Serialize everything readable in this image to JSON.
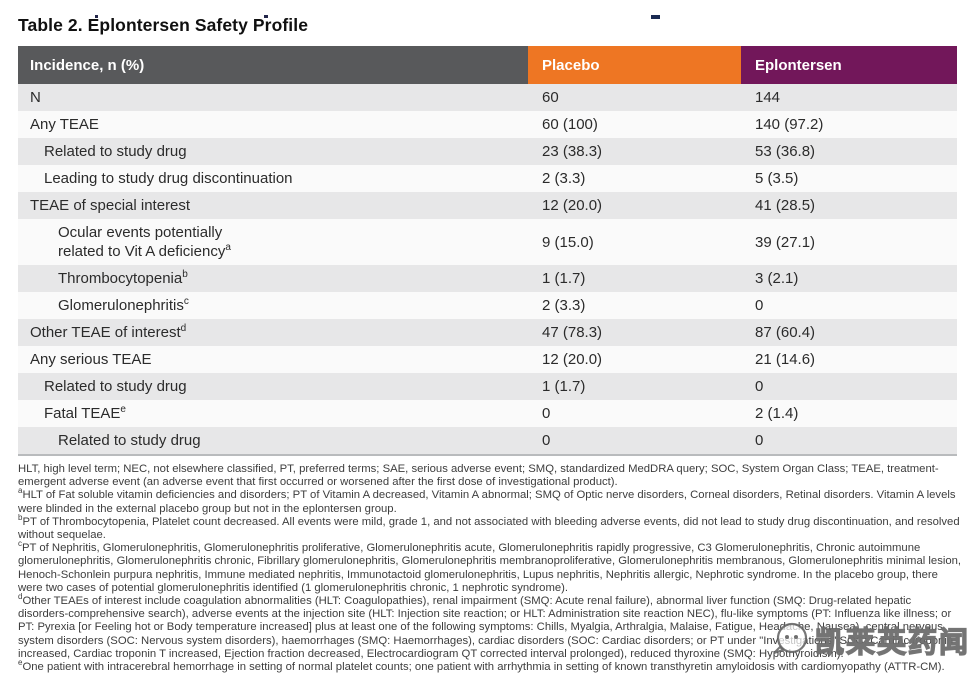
{
  "title": "Table 2. Eplontersen Safety Profile",
  "table": {
    "header": {
      "incidence": "Incidence, n (%)",
      "placebo": "Placebo",
      "eplontersen": "Eplontersen"
    },
    "rows": [
      {
        "label": "N",
        "indent": 0,
        "placebo": "60",
        "eplontersen": "144"
      },
      {
        "label": "Any TEAE",
        "indent": 0,
        "placebo": "60 (100)",
        "eplontersen": "140 (97.2)"
      },
      {
        "label": "Related to study drug",
        "indent": 1,
        "placebo": "23 (38.3)",
        "eplontersen": "53 (36.8)"
      },
      {
        "label": "Leading to study drug discontinuation",
        "indent": 1,
        "placebo": "2 (3.3)",
        "eplontersen": "5 (3.5)"
      },
      {
        "label": "TEAE of special interest",
        "indent": 0,
        "placebo": "12 (20.0)",
        "eplontersen": "41 (28.5)"
      },
      {
        "label": "Ocular events potentially related to Vit A deficiency",
        "lines": [
          "Ocular events potentially",
          "related to Vit A deficiency"
        ],
        "sup": "a",
        "indent": 2,
        "placebo": "9 (15.0)",
        "eplontersen": "39 (27.1)"
      },
      {
        "label": "Thrombocytopenia",
        "sup": "b",
        "indent": 2,
        "placebo": "1 (1.7)",
        "eplontersen": "3 (2.1)"
      },
      {
        "label": "Glomerulonephritis",
        "sup": "c",
        "indent": 2,
        "placebo": "2 (3.3)",
        "eplontersen": "0"
      },
      {
        "label": "Other TEAE of interest",
        "sup": "d",
        "indent": 0,
        "placebo": "47 (78.3)",
        "eplontersen": "87 (60.4)"
      },
      {
        "label": "Any serious TEAE",
        "indent": 0,
        "placebo": "12 (20.0)",
        "eplontersen": "21 (14.6)"
      },
      {
        "label": "Related to study drug",
        "indent": 1,
        "placebo": "1 (1.7)",
        "eplontersen": "0"
      },
      {
        "label": "Fatal TEAE",
        "sup": "e",
        "indent": 1,
        "placebo": "0",
        "eplontersen": "2 (1.4)"
      },
      {
        "label": "Related to study drug",
        "indent": 2,
        "placebo": "0",
        "eplontersen": "0"
      }
    ]
  },
  "footnotes": [
    {
      "sup": "",
      "text": "HLT, high level term; NEC, not elsewhere classified, PT, preferred terms; SAE, serious adverse event; SMQ, standardized MedDRA query; SOC, System Organ Class; TEAE, treatment-emergent adverse event (an adverse event that first occurred or worsened after the first dose of investigational product)."
    },
    {
      "sup": "a",
      "text": "HLT of Fat soluble vitamin deficiencies and disorders; PT of Vitamin A decreased, Vitamin A abnormal; SMQ of Optic nerve disorders, Corneal disorders, Retinal disorders. Vitamin A levels were blinded in the external placebo group but not in the eplontersen group."
    },
    {
      "sup": "b",
      "text": "PT of Thrombocytopenia, Platelet count decreased. All events were mild, grade 1, and not associated with bleeding adverse events, did not lead to study drug discontinuation, and resolved without sequelae."
    },
    {
      "sup": "c",
      "text": "PT of Nephritis, Glomerulonephritis, Glomerulonephritis proliferative, Glomerulonephritis acute, Glomerulonephritis rapidly progressive, C3 Glomerulonephritis, Chronic autoimmune glomerulonephritis, Glomerulonephritis chronic, Fibrillary glomerulonephritis, Glomerulonephritis membranoproliferative, Glomerulonephritis membranous, Glomerulonephritis minimal lesion, Henoch-Schonlein purpura nephritis, Immune mediated nephritis, Immunotactoid glomerulonephritis, Lupus nephritis, Nephritis allergic, Nephrotic syndrome. In the placebo group, there were two cases of potential glomerulonephritis identified (1 glomerulonephritis chronic, 1 nephrotic syndrome)."
    },
    {
      "sup": "d",
      "text": "Other TEAEs of interest include coagulation abnormalities (HLT: Coagulopathies), renal impairment (SMQ: Acute renal failure), abnormal liver function (SMQ: Drug-related hepatic disorders-comprehensive search), adverse events at the injection site (HLT: Injection site reaction; or HLT: Administration site reaction NEC), flu-like symptoms (PT: Influenza like illness; or PT: Pyrexia [or Feeling hot or Body temperature increased] plus at least one of the following symptoms: Chills, Myalgia, Arthralgia, Malaise, Fatigue, Headache, Nausea), central nervous system disorders (SOC: Nervous system disorders), haemorrhages (SMQ: Haemorrhages), cardiac disorders (SOC: Cardiac disorders; or PT under \"Investigations\" SOC: Cardiac troponin increased, Cardiac troponin T increased, Ejection fraction decreased, Electrocardiogram QT corrected interval prolonged), reduced thyroxine (SMQ: Hypothyroidism)."
    },
    {
      "sup": "e",
      "text": "One patient with intracerebral hemorrhage in setting of normal platelet counts; one patient with arrhythmia in setting of known transthyretin amyloidosis with cardiomyopathy (ATTR-CM)."
    }
  ],
  "watermark": {
    "text": "凯莱英药闻"
  },
  "colors": {
    "header_gray": "#58595b",
    "placebo_orange": "#ee7623",
    "eplontersen_purple": "#72175a",
    "row_gray": "#e7e7e8",
    "row_light": "#fafafa"
  }
}
